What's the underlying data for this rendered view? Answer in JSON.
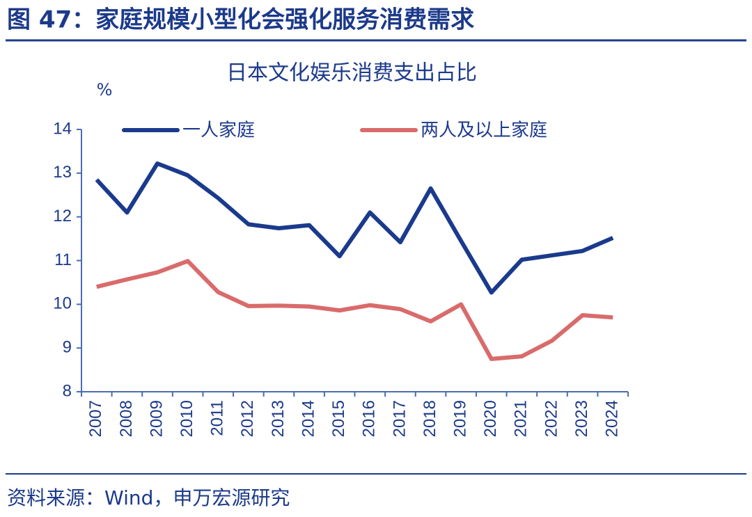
{
  "header": {
    "title": "图 47：家庭规模小型化会强化服务消费需求"
  },
  "chart_data": {
    "type": "line",
    "title": "日本文化娱乐消费支出占比",
    "y_label": "%",
    "categories": [
      "2007",
      "2008",
      "2009",
      "2010",
      "2011",
      "2012",
      "2013",
      "2014",
      "2015",
      "2016",
      "2017",
      "2018",
      "2019",
      "2020",
      "2021",
      "2022",
      "2023",
      "2024"
    ],
    "series": [
      {
        "name": "一人家庭",
        "color": "#1a3a8c",
        "values": [
          12.85,
          12.1,
          13.22,
          12.95,
          12.43,
          11.83,
          11.74,
          11.81,
          11.1,
          12.1,
          11.42,
          12.65,
          11.45,
          10.27,
          11.02,
          11.12,
          11.22,
          11.52
        ]
      },
      {
        "name": "两人及以上家庭",
        "color": "#d96b6b",
        "values": [
          10.4,
          10.57,
          10.73,
          10.99,
          10.28,
          9.96,
          9.97,
          9.95,
          9.86,
          9.98,
          9.89,
          9.61,
          10.0,
          8.75,
          8.81,
          9.17,
          9.75,
          9.7
        ]
      }
    ],
    "ylim": [
      8,
      14
    ],
    "yticks": [
      8,
      9,
      10,
      11,
      12,
      13,
      14
    ],
    "grid": false
  },
  "footer": {
    "source": "资料来源：Wind，申万宏源研究"
  }
}
